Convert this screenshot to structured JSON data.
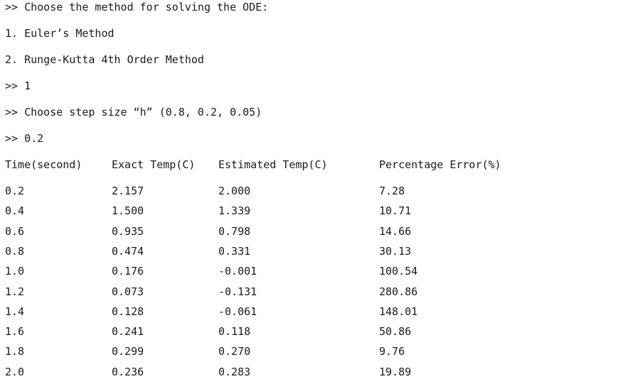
{
  "console": {
    "lines": [
      ">> Choose the method for solving the ODE:",
      "1. Euler’s Method",
      "2. Runge-Kutta 4th Order Method",
      ">> 1",
      ">> Choose step size “h” (0.8, 0.2, 0.05)",
      ">> 0.2"
    ]
  },
  "table": {
    "headers": [
      "Time(second)",
      "Exact Temp(C)",
      "Estimated Temp(C)",
      "Percentage Error(%)"
    ],
    "rows": [
      [
        "0.2",
        "2.157",
        "2.000",
        "7.28"
      ],
      [
        "0.4",
        "1.500",
        "1.339",
        "10.71"
      ],
      [
        "0.6",
        "0.935",
        "0.798",
        "14.66"
      ],
      [
        "0.8",
        "0.474",
        "0.331",
        "30.13"
      ],
      [
        "1.0",
        "0.176",
        "-0.001",
        "100.54"
      ],
      [
        "1.2",
        "0.073",
        "-0.131",
        "280.86"
      ],
      [
        "1.4",
        "0.128",
        "-0.061",
        "148.01"
      ],
      [
        "1.6",
        "0.241",
        "0.118",
        "50.86"
      ],
      [
        "1.8",
        "0.299",
        "0.270",
        "9.76"
      ],
      [
        "2.0",
        "0.236",
        "0.283",
        "19.89"
      ]
    ]
  }
}
